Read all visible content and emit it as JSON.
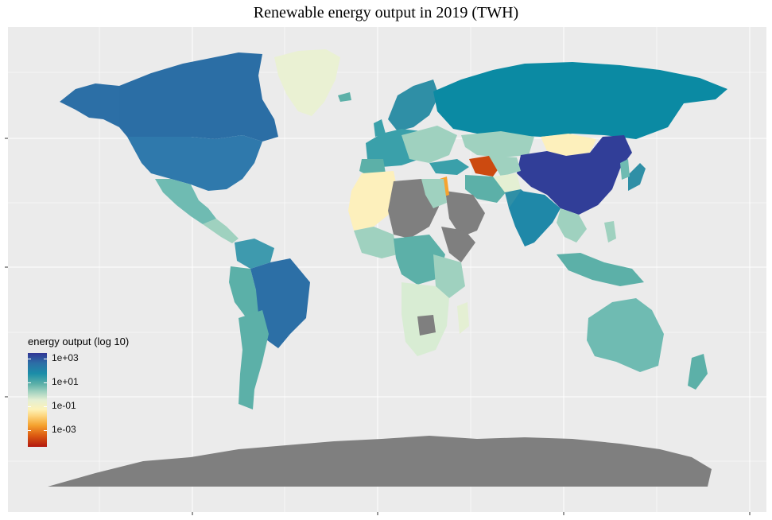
{
  "title": "Renewable energy output in 2019 (TWH)",
  "legend": {
    "title": "energy output (log 10)",
    "ticks": [
      "1e+03",
      "1e+01",
      "1e-01",
      "1e-03"
    ],
    "colors": [
      "#313695",
      "#1b8ea8",
      "#e4efd3",
      "#fdd57e",
      "#b2180f"
    ],
    "na_color": "#7f7f7f"
  },
  "panel": {
    "background": "#ebebeb",
    "grid": true
  }
}
